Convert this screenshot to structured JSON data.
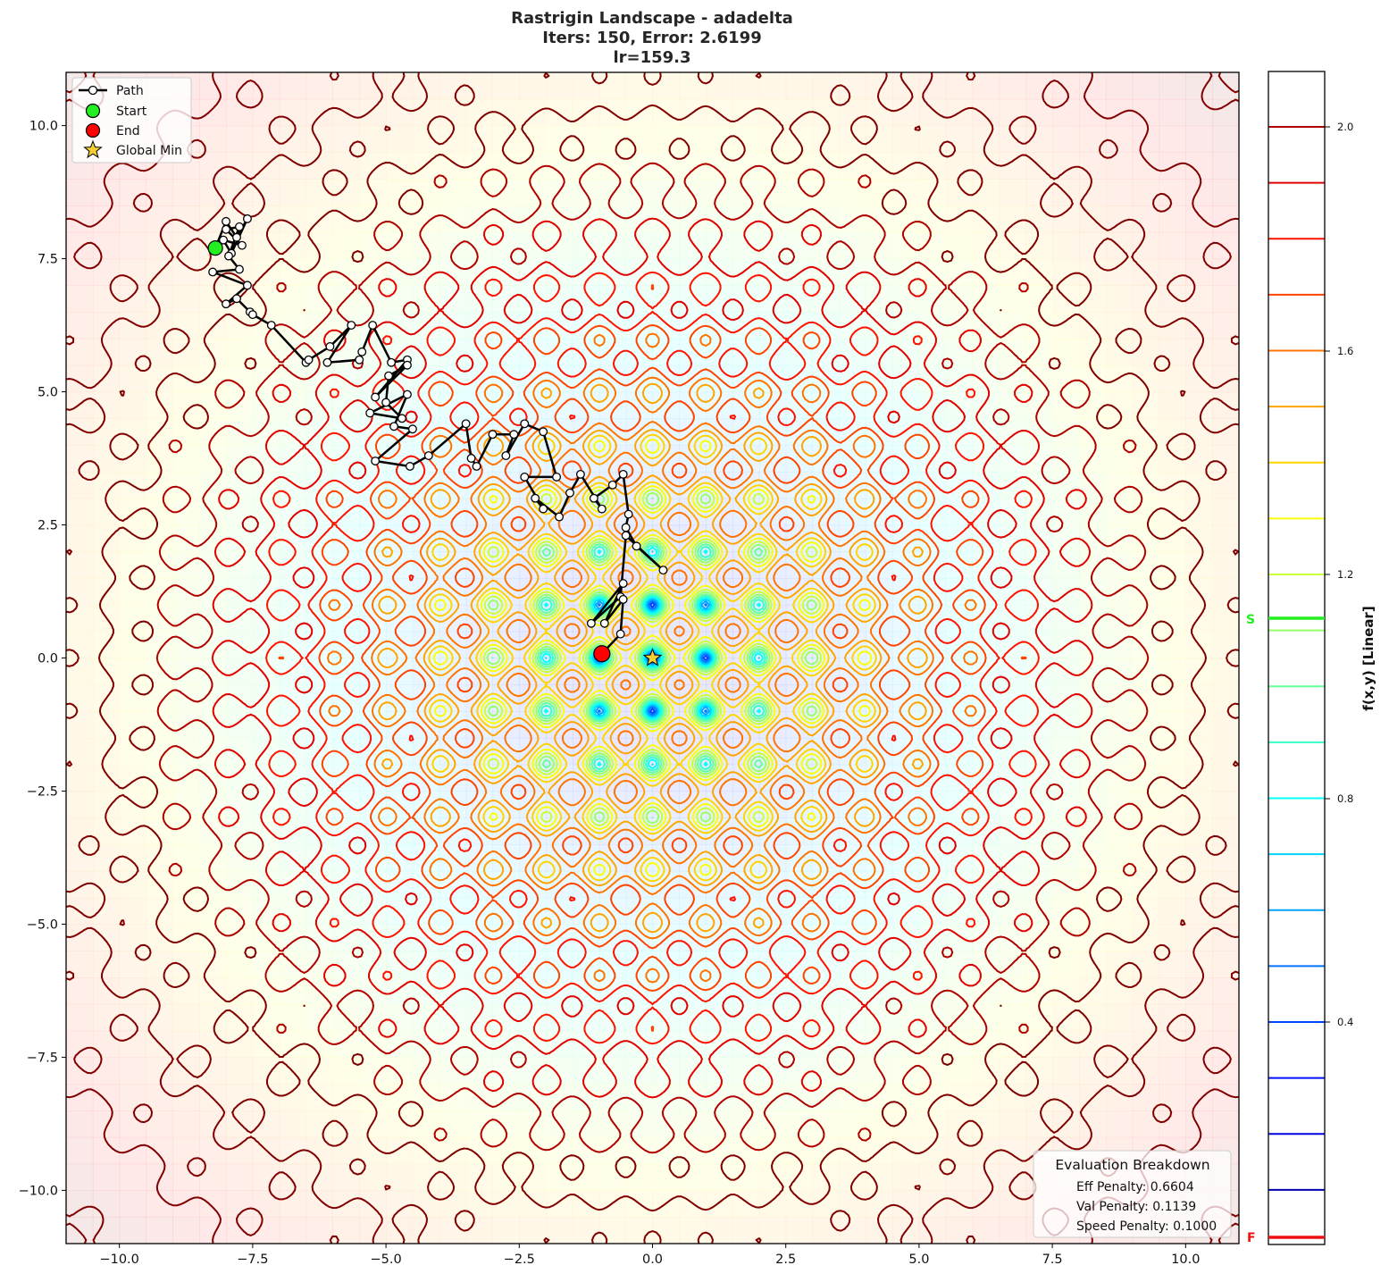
{
  "chart_data": {
    "type": "contour",
    "title": "Rastrigin Landscape - adadelta",
    "title_lines": [
      "Rastrigin Landscape - adadelta",
      "Iters: 150, Error: 2.6199",
      "lr=159.3"
    ],
    "function": "Rastrigin f(x,y) = 20 + x^2 - 10cos(2πx) + y^2 - 10cos(2πy)",
    "optimizer": "adadelta",
    "iterations": 150,
    "error": 2.6199,
    "learning_rate": 159.3,
    "xlabel": "",
    "ylabel": "",
    "xlim": [
      -11,
      11
    ],
    "ylim": [
      -11,
      11
    ],
    "x_ticks": [
      -10.0,
      -7.5,
      -5.0,
      -2.5,
      0.0,
      2.5,
      5.0,
      7.5,
      10.0
    ],
    "x_tick_labels": [
      "−10.0",
      "−7.5",
      "−5.0",
      "−2.5",
      "0.0",
      "2.5",
      "5.0",
      "7.5",
      "10.0"
    ],
    "y_ticks": [
      10.0,
      7.5,
      5.0,
      2.5,
      0.0,
      -2.5,
      -5.0,
      -7.5,
      -10.0
    ],
    "y_tick_labels": [
      "10.0",
      "7.5",
      "5.0",
      "2.5",
      "0.0",
      "−2.5",
      "−5.0",
      "−7.5",
      "−10.0"
    ],
    "grid": false,
    "colormap": "jet",
    "colorbar": {
      "label": "f(x,y) [Linear]",
      "ticks": [
        2.0,
        1.6,
        1.2,
        0.8,
        0.4
      ],
      "tick_labels": [
        "2.0",
        "1.6",
        "1.2",
        "0.8",
        "0.4"
      ],
      "range": [
        0.0,
        2.1
      ],
      "levels": [
        0.0,
        0.1,
        0.2,
        0.3,
        0.4,
        0.5,
        0.6,
        0.7,
        0.8,
        0.9,
        1.0,
        1.1,
        1.2,
        1.3,
        1.4,
        1.5,
        1.6,
        1.7,
        1.8,
        1.9,
        2.0,
        2.1
      ],
      "start_marker": {
        "label": "S",
        "value": 1.07,
        "color": "#22ee22"
      },
      "final_marker": {
        "label": "F",
        "value": 0.02,
        "color": "#ee1111"
      }
    },
    "legend": {
      "position": "upper left",
      "entries": [
        {
          "label": "Path",
          "marker": "line-with-white-circle"
        },
        {
          "label": "Start",
          "marker": "green-circle"
        },
        {
          "label": "End",
          "marker": "red-circle"
        },
        {
          "label": "Global Min",
          "marker": "gold-star"
        }
      ]
    },
    "start_point": {
      "x": -8.2,
      "y": 7.7
    },
    "end_point": {
      "x": -0.95,
      "y": 0.08
    },
    "global_min": {
      "x": 0.0,
      "y": 0.0
    },
    "path_approx": [
      [
        -8.2,
        7.7
      ],
      [
        -8.0,
        8.2
      ],
      [
        -7.8,
        7.9
      ],
      [
        -7.6,
        8.25
      ],
      [
        -7.9,
        7.6
      ],
      [
        -8.05,
        7.85
      ],
      [
        -7.7,
        7.75
      ],
      [
        -8.0,
        8.05
      ],
      [
        -7.75,
        8.1
      ],
      [
        -7.95,
        7.55
      ],
      [
        -7.75,
        7.3
      ],
      [
        -8.25,
        7.25
      ],
      [
        -7.6,
        7.0
      ],
      [
        -8.0,
        6.65
      ],
      [
        -7.8,
        6.75
      ],
      [
        -7.55,
        6.5
      ],
      [
        -7.5,
        6.45
      ],
      [
        -7.15,
        6.25
      ],
      [
        -6.5,
        5.55
      ],
      [
        -6.45,
        5.6
      ],
      [
        -6.05,
        5.85
      ],
      [
        -5.65,
        6.25
      ],
      [
        -6.1,
        5.55
      ],
      [
        -5.5,
        5.6
      ],
      [
        -5.45,
        5.75
      ],
      [
        -5.25,
        6.25
      ],
      [
        -4.9,
        5.55
      ],
      [
        -4.6,
        5.6
      ],
      [
        -5.2,
        4.9
      ],
      [
        -4.6,
        5.5
      ],
      [
        -4.95,
        5.3
      ],
      [
        -5.0,
        4.8
      ],
      [
        -4.7,
        4.5
      ],
      [
        -5.3,
        4.6
      ],
      [
        -4.6,
        4.95
      ],
      [
        -4.85,
        4.35
      ],
      [
        -4.5,
        4.3
      ],
      [
        -5.2,
        3.7
      ],
      [
        -4.55,
        3.6
      ],
      [
        -4.2,
        3.8
      ],
      [
        -3.5,
        4.4
      ],
      [
        -3.4,
        3.75
      ],
      [
        -3.3,
        3.6
      ],
      [
        -3.0,
        4.2
      ],
      [
        -2.6,
        4.2
      ],
      [
        -2.75,
        3.8
      ],
      [
        -2.4,
        4.4
      ],
      [
        -2.05,
        4.25
      ],
      [
        -1.8,
        3.4
      ],
      [
        -2.4,
        3.4
      ],
      [
        -2.05,
        2.8
      ],
      [
        -2.2,
        3.0
      ],
      [
        -1.75,
        2.65
      ],
      [
        -1.55,
        3.1
      ],
      [
        -1.35,
        3.45
      ],
      [
        -0.95,
        2.8
      ],
      [
        -1.1,
        3.0
      ],
      [
        -0.75,
        3.25
      ],
      [
        -0.55,
        3.45
      ],
      [
        -0.45,
        2.7
      ],
      [
        -0.5,
        2.45
      ],
      [
        -0.3,
        2.1
      ],
      [
        0.2,
        1.65
      ],
      [
        -0.5,
        2.3
      ],
      [
        -0.6,
        1.15
      ],
      [
        -1.15,
        0.65
      ],
      [
        -0.55,
        1.4
      ],
      [
        -0.9,
        0.65
      ],
      [
        -0.55,
        1.1
      ],
      [
        -0.6,
        0.45
      ],
      [
        -0.95,
        0.08
      ]
    ],
    "annotation_box": {
      "title": "Evaluation Breakdown",
      "position": "lower right",
      "items": [
        {
          "label": "Eff Penalty",
          "value": 0.6604
        },
        {
          "label": "Val Penalty",
          "value": 0.1139
        },
        {
          "label": "Speed Penalty",
          "value": 0.1
        }
      ]
    }
  },
  "header": {
    "line1": "Rastrigin Landscape - adadelta",
    "line2": "Iters: 150, Error: 2.6199",
    "line3": "lr=159.3"
  },
  "legend": {
    "path": "Path",
    "start": "Start",
    "end": "End",
    "global_min": "Global Min"
  },
  "eval_box": {
    "title": "Evaluation Breakdown",
    "line1": "Eff Penalty: 0.6604",
    "line2": "Val Penalty: 0.1139",
    "line3": "Speed Penalty: 0.1000"
  },
  "colorbar": {
    "label": "f(x,y) [Linear]",
    "tick_2_0": "2.0",
    "tick_1_6": "1.6",
    "tick_1_2": "1.2",
    "tick_0_8": "0.8",
    "tick_0_4": "0.4",
    "start_marker": "S",
    "final_marker": "F"
  },
  "axes": {
    "x": [
      "−10.0",
      "−7.5",
      "−5.0",
      "−2.5",
      "0.0",
      "2.5",
      "5.0",
      "7.5",
      "10.0"
    ],
    "y": [
      "10.0",
      "7.5",
      "5.0",
      "2.5",
      "0.0",
      "−2.5",
      "−5.0",
      "−7.5",
      "−10.0"
    ]
  },
  "colors": {
    "path_line": "#000000",
    "path_marker_fill": "#ffffff",
    "start": "#22ee22",
    "end": "#ff0000",
    "global_min": "#f5d033",
    "cb_start_marker": "#22ee22",
    "cb_final_marker": "#ee1111"
  }
}
